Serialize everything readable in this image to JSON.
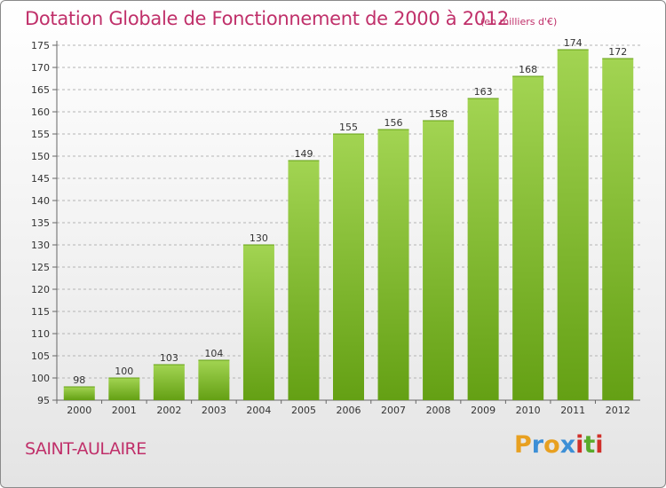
{
  "header": {
    "title": "Dotation Globale de Fonctionnement de 2000 à 2012",
    "subtitle": "(en milliers d'€)"
  },
  "footer": {
    "place_name": "SAINT-AULAIRE",
    "logo_letters": [
      "P",
      "r",
      "o",
      "x",
      "i",
      "t",
      "i"
    ],
    "logo_colors": [
      "#e8a020",
      "#3d8fd6",
      "#e8a020",
      "#3d8fd6",
      "#d0302a",
      "#5aab2a",
      "#d0302a"
    ]
  },
  "colors": {
    "title": "#c0306a",
    "bar_light": "#a2d452",
    "bar_dark": "#64a014",
    "grid": "#b4b4b4"
  },
  "chart_data": {
    "type": "bar",
    "title": "Dotation Globale de Fonctionnement de 2000 à 2012",
    "subtitle": "(en milliers d'€)",
    "categories": [
      "2000",
      "2001",
      "2002",
      "2003",
      "2004",
      "2005",
      "2006",
      "2007",
      "2008",
      "2009",
      "2010",
      "2011",
      "2012"
    ],
    "values": [
      98,
      100,
      103,
      104,
      130,
      149,
      155,
      156,
      158,
      163,
      168,
      174,
      172
    ],
    "ylim": [
      95,
      175
    ],
    "yticks": [
      95,
      100,
      105,
      110,
      115,
      120,
      125,
      130,
      135,
      140,
      145,
      150,
      155,
      160,
      165,
      170,
      175
    ],
    "grid": "horizontal dashed",
    "data_labels": true
  }
}
